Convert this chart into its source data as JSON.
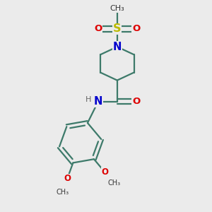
{
  "bg_color": "#ebebeb",
  "bond_color": "#3d7a6a",
  "N_color": "#0000cc",
  "O_color": "#dd0000",
  "S_color": "#bbbb00",
  "line_width": 1.6,
  "font_size": 8.5,
  "figsize": [
    3.0,
    3.0
  ],
  "dpi": 100,
  "xlim": [
    0.15,
    0.95
  ],
  "ylim": [
    0.04,
    0.98
  ]
}
